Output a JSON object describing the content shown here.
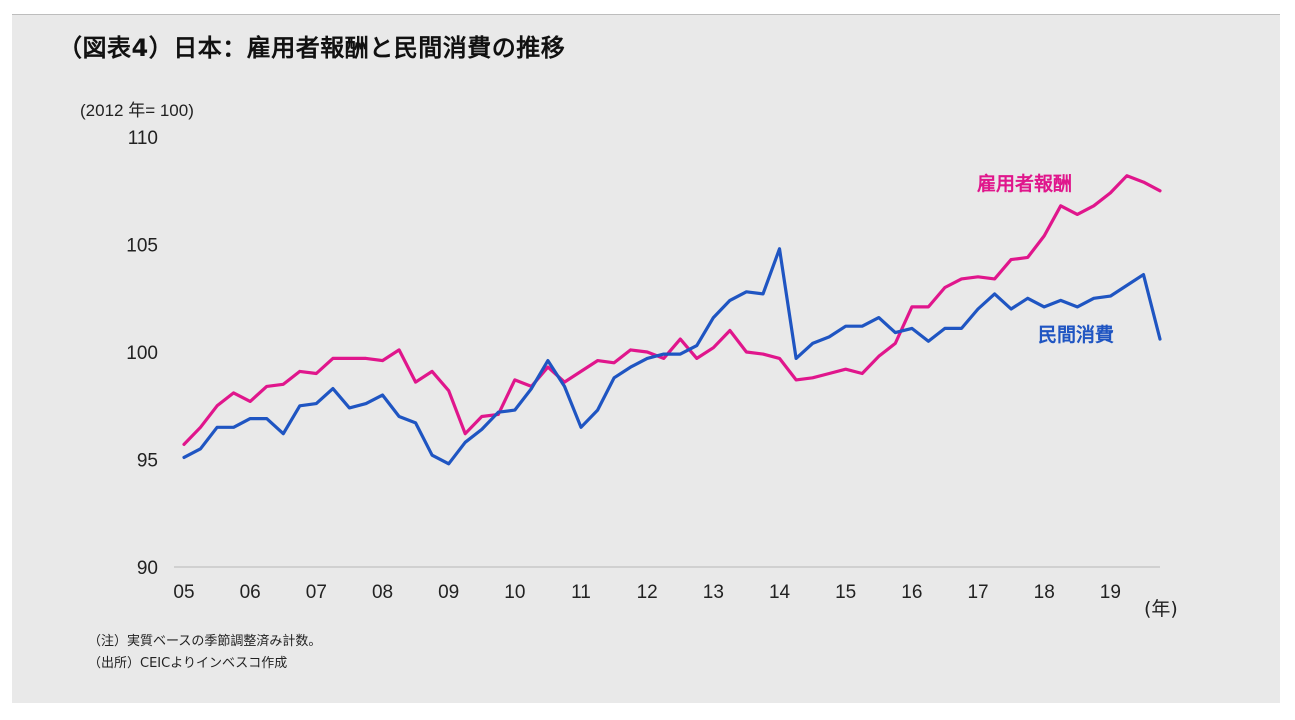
{
  "title": "（図表4）日本：雇用者報酬と民間消費の推移",
  "notes": [
    "（注）実質ベースの季節調整済み計数。",
    "（出所）CEICよりインベスコ作成"
  ],
  "colors": {
    "compensation": "#e0168c",
    "consumption": "#1f55c2",
    "background": "#e9e9e9",
    "axis": "#c8c8c8"
  },
  "chart_data": {
    "type": "line",
    "unit_label": "(2012 年= 100)",
    "x_unit_label": "(年)",
    "ylim": [
      90,
      110
    ],
    "yticks": [
      "110",
      "105",
      "100",
      "95",
      "90"
    ],
    "xticks": [
      "05",
      "06",
      "07",
      "08",
      "09",
      "10",
      "11",
      "12",
      "13",
      "14",
      "15",
      "16",
      "17",
      "18",
      "19"
    ],
    "x_start": 2005.0,
    "x_step": 0.25,
    "grid": false,
    "legend": "inline labels at right",
    "series": [
      {
        "name": "雇用者報酬",
        "color": "#e0168c",
        "values": [
          95.7,
          96.5,
          97.5,
          98.1,
          97.7,
          98.4,
          98.5,
          99.1,
          99.0,
          99.7,
          99.7,
          99.7,
          99.6,
          100.1,
          98.6,
          99.1,
          98.2,
          96.2,
          97.0,
          97.1,
          98.7,
          98.4,
          99.3,
          98.6,
          99.1,
          99.6,
          99.5,
          100.1,
          100.0,
          99.7,
          100.6,
          99.7,
          100.2,
          101.0,
          100.0,
          99.9,
          99.7,
          98.7,
          98.8,
          99.0,
          99.2,
          99.0,
          99.8,
          100.4,
          102.1,
          102.1,
          103.0,
          103.4,
          103.5,
          103.4,
          104.3,
          104.4,
          105.4,
          106.8,
          106.4,
          106.8,
          107.4,
          108.2,
          107.9,
          107.5
        ]
      },
      {
        "name": "民間消費",
        "color": "#1f55c2",
        "values": [
          95.1,
          95.5,
          96.5,
          96.5,
          96.9,
          96.9,
          96.2,
          97.5,
          97.6,
          98.3,
          97.4,
          97.6,
          98.0,
          97.0,
          96.7,
          95.2,
          94.8,
          95.8,
          96.4,
          97.2,
          97.3,
          98.3,
          99.6,
          98.4,
          96.5,
          97.3,
          98.8,
          99.3,
          99.7,
          99.9,
          99.9,
          100.3,
          101.6,
          102.4,
          102.8,
          102.7,
          104.8,
          99.7,
          100.4,
          100.7,
          101.2,
          101.2,
          101.6,
          100.9,
          101.1,
          100.5,
          101.1,
          101.1,
          102.0,
          102.7,
          102.0,
          102.5,
          102.1,
          102.4,
          102.1,
          102.5,
          102.6,
          103.1,
          103.6,
          100.6
        ]
      }
    ]
  }
}
